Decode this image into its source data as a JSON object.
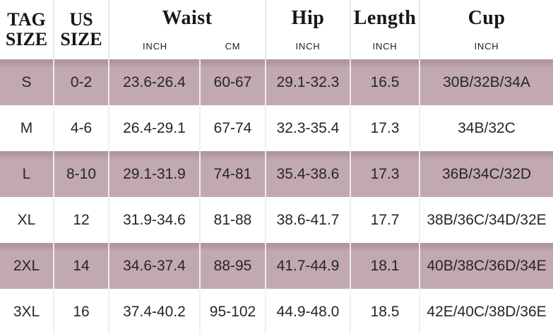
{
  "chart_data": {
    "type": "table",
    "title": "Garment size chart",
    "header": {
      "tag": {
        "line1": "TAG",
        "line2": "SIZE"
      },
      "us": {
        "line1": "US",
        "line2": "SIZE"
      },
      "waist": {
        "label": "Waist",
        "unit_inch": "INCH",
        "unit_cm": "CM"
      },
      "hip": {
        "label": "Hip",
        "unit": "INCH"
      },
      "length": {
        "label": "Length",
        "unit": "INCH"
      },
      "cup": {
        "label": "Cup",
        "unit": "INCH"
      }
    },
    "rows": [
      {
        "tag": "S",
        "us": "0-2",
        "waist_inch": "23.6-26.4",
        "waist_cm": "60-67",
        "hip_inch": "29.1-32.3",
        "length_inch": "16.5",
        "cup_inch": "30B/32B/34A",
        "highlighted": true
      },
      {
        "tag": "M",
        "us": "4-6",
        "waist_inch": "26.4-29.1",
        "waist_cm": "67-74",
        "hip_inch": "32.3-35.4",
        "length_inch": "17.3",
        "cup_inch": "34B/32C",
        "highlighted": false
      },
      {
        "tag": "L",
        "us": "8-10",
        "waist_inch": "29.1-31.9",
        "waist_cm": "74-81",
        "hip_inch": "35.4-38.6",
        "length_inch": "17.3",
        "cup_inch": "36B/34C/32D",
        "highlighted": true
      },
      {
        "tag": "XL",
        "us": "12",
        "waist_inch": "31.9-34.6",
        "waist_cm": "81-88",
        "hip_inch": "38.6-41.7",
        "length_inch": "17.7",
        "cup_inch": "38B/36C/34D/32E",
        "highlighted": false
      },
      {
        "tag": "2XL",
        "us": "14",
        "waist_inch": "34.6-37.4",
        "waist_cm": "88-95",
        "hip_inch": "41.7-44.9",
        "length_inch": "18.1",
        "cup_inch": "40B/38C/36D/34E",
        "highlighted": true
      },
      {
        "tag": "3XL",
        "us": "16",
        "waist_inch": "37.4-40.2",
        "waist_cm": "95-102",
        "hip_inch": "44.9-48.0",
        "length_inch": "18.5",
        "cup_inch": "42E/40C/38D/36E",
        "highlighted": false
      }
    ],
    "colors": {
      "row_highlight": "#c1a9af",
      "row_highlight_top_edge": "#b0969e",
      "row_plain": "#ffffff",
      "text": "#262626",
      "divider": "#e9e6e8"
    }
  }
}
